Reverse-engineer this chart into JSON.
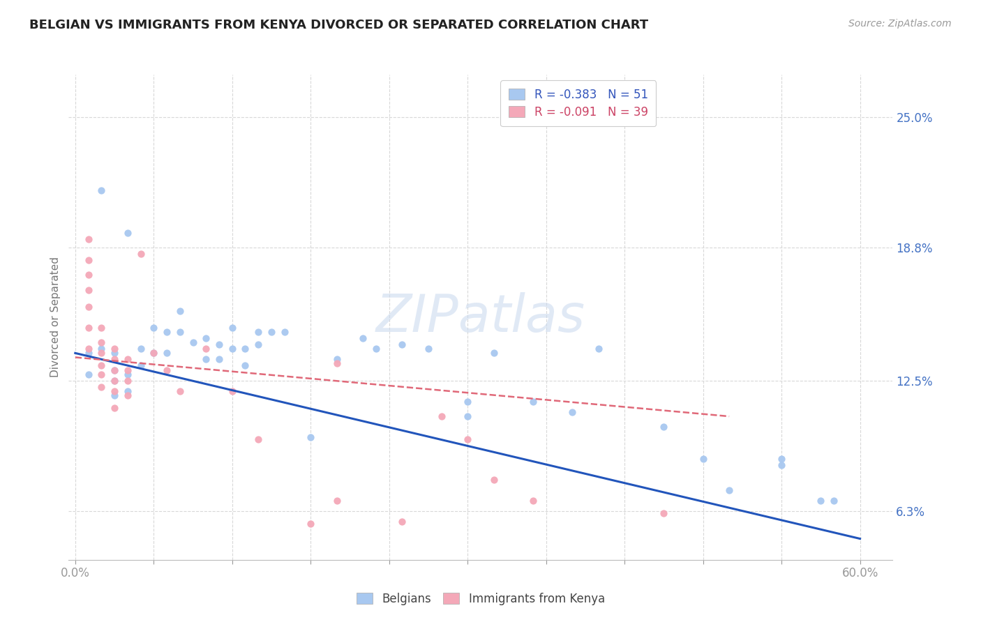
{
  "title": "BELGIAN VS IMMIGRANTS FROM KENYA DIVORCED OR SEPARATED CORRELATION CHART",
  "source": "Source: ZipAtlas.com",
  "ylabel": "Divorced or Separated",
  "watermark": "ZIPatlas",
  "y_tick_labels_right": [
    "6.3%",
    "12.5%",
    "18.8%",
    "25.0%"
  ],
  "y_tick_values": [
    0.063,
    0.125,
    0.188,
    0.25
  ],
  "legend_labels_bottom": [
    "Belgians",
    "Immigrants from Kenya"
  ],
  "belgian_color": "#a8c8f0",
  "kenya_color": "#f4a8b8",
  "belgian_line_color": "#2255bb",
  "kenya_line_color": "#e06878",
  "belgian_scatter": {
    "x": [
      0.02,
      0.04,
      0.01,
      0.01,
      0.02,
      0.03,
      0.03,
      0.03,
      0.03,
      0.04,
      0.04,
      0.05,
      0.05,
      0.06,
      0.06,
      0.07,
      0.07,
      0.08,
      0.08,
      0.09,
      0.1,
      0.1,
      0.11,
      0.11,
      0.12,
      0.12,
      0.13,
      0.13,
      0.14,
      0.14,
      0.15,
      0.16,
      0.18,
      0.2,
      0.22,
      0.23,
      0.25,
      0.27,
      0.3,
      0.3,
      0.32,
      0.35,
      0.38,
      0.4,
      0.45,
      0.48,
      0.5,
      0.54,
      0.54,
      0.57,
      0.58
    ],
    "y": [
      0.215,
      0.195,
      0.138,
      0.128,
      0.14,
      0.138,
      0.13,
      0.125,
      0.118,
      0.128,
      0.12,
      0.14,
      0.132,
      0.15,
      0.138,
      0.148,
      0.138,
      0.158,
      0.148,
      0.143,
      0.145,
      0.135,
      0.142,
      0.135,
      0.15,
      0.14,
      0.14,
      0.132,
      0.148,
      0.142,
      0.148,
      0.148,
      0.098,
      0.135,
      0.145,
      0.14,
      0.142,
      0.14,
      0.115,
      0.108,
      0.138,
      0.115,
      0.11,
      0.14,
      0.103,
      0.088,
      0.073,
      0.088,
      0.085,
      0.068,
      0.068
    ]
  },
  "kenya_scatter": {
    "x": [
      0.01,
      0.01,
      0.01,
      0.01,
      0.01,
      0.01,
      0.01,
      0.02,
      0.02,
      0.02,
      0.02,
      0.02,
      0.02,
      0.03,
      0.03,
      0.03,
      0.03,
      0.03,
      0.03,
      0.04,
      0.04,
      0.04,
      0.04,
      0.05,
      0.06,
      0.07,
      0.08,
      0.1,
      0.12,
      0.14,
      0.18,
      0.2,
      0.2,
      0.25,
      0.28,
      0.3,
      0.32,
      0.35,
      0.45
    ],
    "y": [
      0.192,
      0.182,
      0.175,
      0.168,
      0.16,
      0.15,
      0.14,
      0.15,
      0.143,
      0.138,
      0.132,
      0.128,
      0.122,
      0.14,
      0.135,
      0.13,
      0.125,
      0.12,
      0.112,
      0.135,
      0.13,
      0.125,
      0.118,
      0.185,
      0.138,
      0.13,
      0.12,
      0.14,
      0.12,
      0.097,
      0.057,
      0.068,
      0.133,
      0.058,
      0.108,
      0.097,
      0.078,
      0.068,
      0.062
    ]
  },
  "xlim": [
    -0.005,
    0.625
  ],
  "ylim": [
    0.04,
    0.27
  ],
  "x_tick_positions": [
    0.0,
    0.06,
    0.12,
    0.18,
    0.24,
    0.3,
    0.36,
    0.42,
    0.48,
    0.54,
    0.6
  ],
  "background_color": "#ffffff",
  "grid_color": "#d8d8d8"
}
